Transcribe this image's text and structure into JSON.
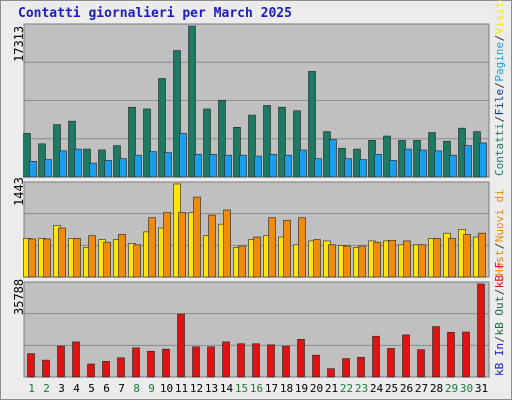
{
  "title": "Contatti giornalieri per March 2025",
  "colors": {
    "title": "#1a1acc",
    "pages": "#1e7a63",
    "hits": "#1a9ef0",
    "files": "#0a3a8f",
    "hosts": "#f08a0a",
    "visits": "#ffe600",
    "kbin": "#1a6c3a",
    "kbout": "#1a1acc",
    "kbf": "#e01212",
    "panel_bg": "#c0c0c0",
    "weekday": "#000000",
    "weekend": "#1a7a3a"
  },
  "right_legend": {
    "top": [
      {
        "text": "Contatti",
        "color": "#1e7a63"
      },
      {
        "text": "File",
        "color": "#0a3a8f"
      },
      {
        "text": "Pagine",
        "color": "#1a9ef0"
      },
      {
        "text": "Visite",
        "color": "#ffe600"
      }
    ],
    "middle": [
      {
        "text": "Host",
        "color": "#f08a0a"
      },
      {
        "text": "Nuovi di",
        "color": "#f08a0a"
      }
    ],
    "bottom": [
      {
        "text": "kB In",
        "color": "#1a1acc"
      },
      {
        "text": "kB Out",
        "color": "#1a6c3a"
      },
      {
        "text": "kB F",
        "color": "#e01212"
      }
    ]
  },
  "chart_data": [
    {
      "type": "bar",
      "ylabel": "17313",
      "ymax": 17313,
      "x": [
        1,
        2,
        3,
        4,
        5,
        6,
        7,
        8,
        9,
        10,
        11,
        12,
        13,
        14,
        15,
        16,
        17,
        18,
        19,
        20,
        21,
        22,
        23,
        24,
        25,
        26,
        27,
        28,
        29,
        30,
        31
      ],
      "series": [
        {
          "name": "Contatti",
          "values": [
            5000,
            3800,
            6000,
            6400,
            3200,
            3100,
            3600,
            8000,
            7800,
            11300,
            14500,
            17300,
            7800,
            8800,
            5700,
            7100,
            8200,
            8000,
            7600,
            12100,
            5200,
            3300,
            3200,
            4200,
            4700,
            4200,
            4200,
            5100,
            4100,
            5600,
            5200
          ]
        },
        {
          "name": "Pagine",
          "values": [
            1800,
            2000,
            3000,
            3200,
            1600,
            1900,
            2100,
            2500,
            2900,
            2800,
            5000,
            2600,
            2600,
            2500,
            2500,
            2400,
            2600,
            2500,
            3100,
            2100,
            4300,
            2100,
            2000,
            2600,
            1900,
            3200,
            3100,
            3000,
            2500,
            3600,
            3900
          ]
        }
      ]
    },
    {
      "type": "bar",
      "ylabel": "1443",
      "ymax": 1443,
      "x": [
        1,
        2,
        3,
        4,
        5,
        6,
        7,
        8,
        9,
        10,
        11,
        12,
        13,
        14,
        15,
        16,
        17,
        18,
        19,
        20,
        21,
        22,
        23,
        24,
        25,
        26,
        27,
        28,
        29,
        30,
        31
      ],
      "series": [
        {
          "name": "Visite",
          "values": [
            600,
            600,
            800,
            600,
            460,
            580,
            580,
            520,
            700,
            760,
            1443,
            1000,
            640,
            820,
            460,
            580,
            640,
            620,
            500,
            560,
            560,
            490,
            460,
            560,
            560,
            500,
            500,
            600,
            680,
            740,
            620
          ]
        },
        {
          "name": "Host",
          "values": [
            590,
            590,
            760,
            600,
            640,
            540,
            660,
            500,
            920,
            1000,
            1000,
            1240,
            960,
            1040,
            480,
            620,
            920,
            880,
            920,
            580,
            500,
            480,
            480,
            540,
            570,
            560,
            500,
            600,
            600,
            660,
            680
          ]
        }
      ]
    },
    {
      "type": "bar",
      "ylabel": "35788",
      "ymax": 35788,
      "x": [
        1,
        2,
        3,
        4,
        5,
        6,
        7,
        8,
        9,
        10,
        11,
        12,
        13,
        14,
        15,
        16,
        17,
        18,
        19,
        20,
        21,
        22,
        23,
        24,
        25,
        26,
        27,
        28,
        29,
        30,
        31
      ],
      "series": [
        {
          "name": "kB F",
          "values": [
            9000,
            6500,
            11900,
            13500,
            5000,
            6000,
            7400,
            11200,
            9900,
            10700,
            24200,
            11600,
            11600,
            13500,
            12800,
            12800,
            12400,
            11900,
            14500,
            8400,
            3200,
            7100,
            7600,
            15700,
            11000,
            16200,
            10500,
            19400,
            17200,
            17300,
            35788
          ]
        }
      ]
    }
  ],
  "days": [
    "1",
    "2",
    "3",
    "4",
    "5",
    "6",
    "7",
    "8",
    "9",
    "10",
    "11",
    "12",
    "13",
    "14",
    "15",
    "16",
    "17",
    "18",
    "19",
    "20",
    "21",
    "22",
    "23",
    "24",
    "25",
    "26",
    "27",
    "28",
    "29",
    "30",
    "31"
  ],
  "weekend_days": [
    1,
    2,
    8,
    9,
    15,
    16,
    22,
    23,
    29,
    30
  ]
}
